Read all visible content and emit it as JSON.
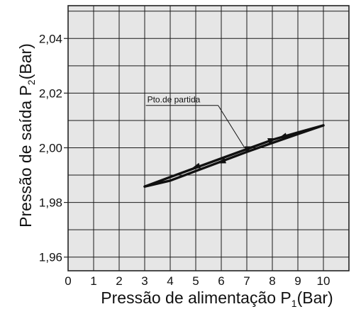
{
  "chart_data": {
    "type": "line",
    "title": "",
    "xlabel": "Pressão de alimentação P",
    "xlabel_sub": "1",
    "xlabel_unit": "(Bar)",
    "ylabel": "Pressão de saída P",
    "ylabel_sub": "2",
    "ylabel_unit": "(Bar)",
    "xlim": [
      0,
      11
    ],
    "ylim": [
      1.955,
      2.052
    ],
    "x_ticks": [
      0,
      1,
      2,
      3,
      4,
      5,
      6,
      7,
      8,
      9,
      10
    ],
    "x_tick_labels": [
      "0",
      "1",
      "2",
      "3",
      "4",
      "5",
      "6",
      "7",
      "8",
      "9",
      "10"
    ],
    "y_ticks": [
      1.96,
      1.98,
      2.0,
      2.02,
      2.04
    ],
    "y_tick_labels": [
      "1,96",
      "1,98",
      "2,00",
      "2,02",
      "2,04"
    ],
    "grid": true,
    "grid_x_every": 1,
    "grid_y_every": 0.01,
    "series": [
      {
        "x": [
          3.0,
          4.0,
          5.0,
          6.0,
          7.0,
          8.0,
          9.0,
          10.0
        ],
        "values": [
          1.9858,
          1.9893,
          1.9927,
          1.9961,
          1.9995,
          2.0029,
          2.0056,
          2.0082
        ]
      },
      {
        "x": [
          3.0,
          4.0,
          5.0,
          6.0,
          7.0,
          8.0,
          9.0,
          10.0
        ],
        "values": [
          1.9858,
          1.988,
          1.9915,
          1.995,
          1.9985,
          2.0018,
          2.005,
          2.0082
        ]
      }
    ],
    "arrows": [
      {
        "x": 5.0,
        "y": 1.993,
        "dir": "left"
      },
      {
        "x": 6.0,
        "y": 1.9948,
        "dir": "left"
      },
      {
        "x": 7.1,
        "y": 2.0,
        "dir": "right"
      },
      {
        "x": 8.0,
        "y": 2.003,
        "dir": "right"
      },
      {
        "x": 8.4,
        "y": 2.004,
        "dir": "left"
      }
    ],
    "annotation": {
      "text": "Pto.de partida",
      "point_x": 6.9,
      "point_y": 2.0002,
      "label_x": 3.1,
      "label_y": 2.0155
    }
  }
}
